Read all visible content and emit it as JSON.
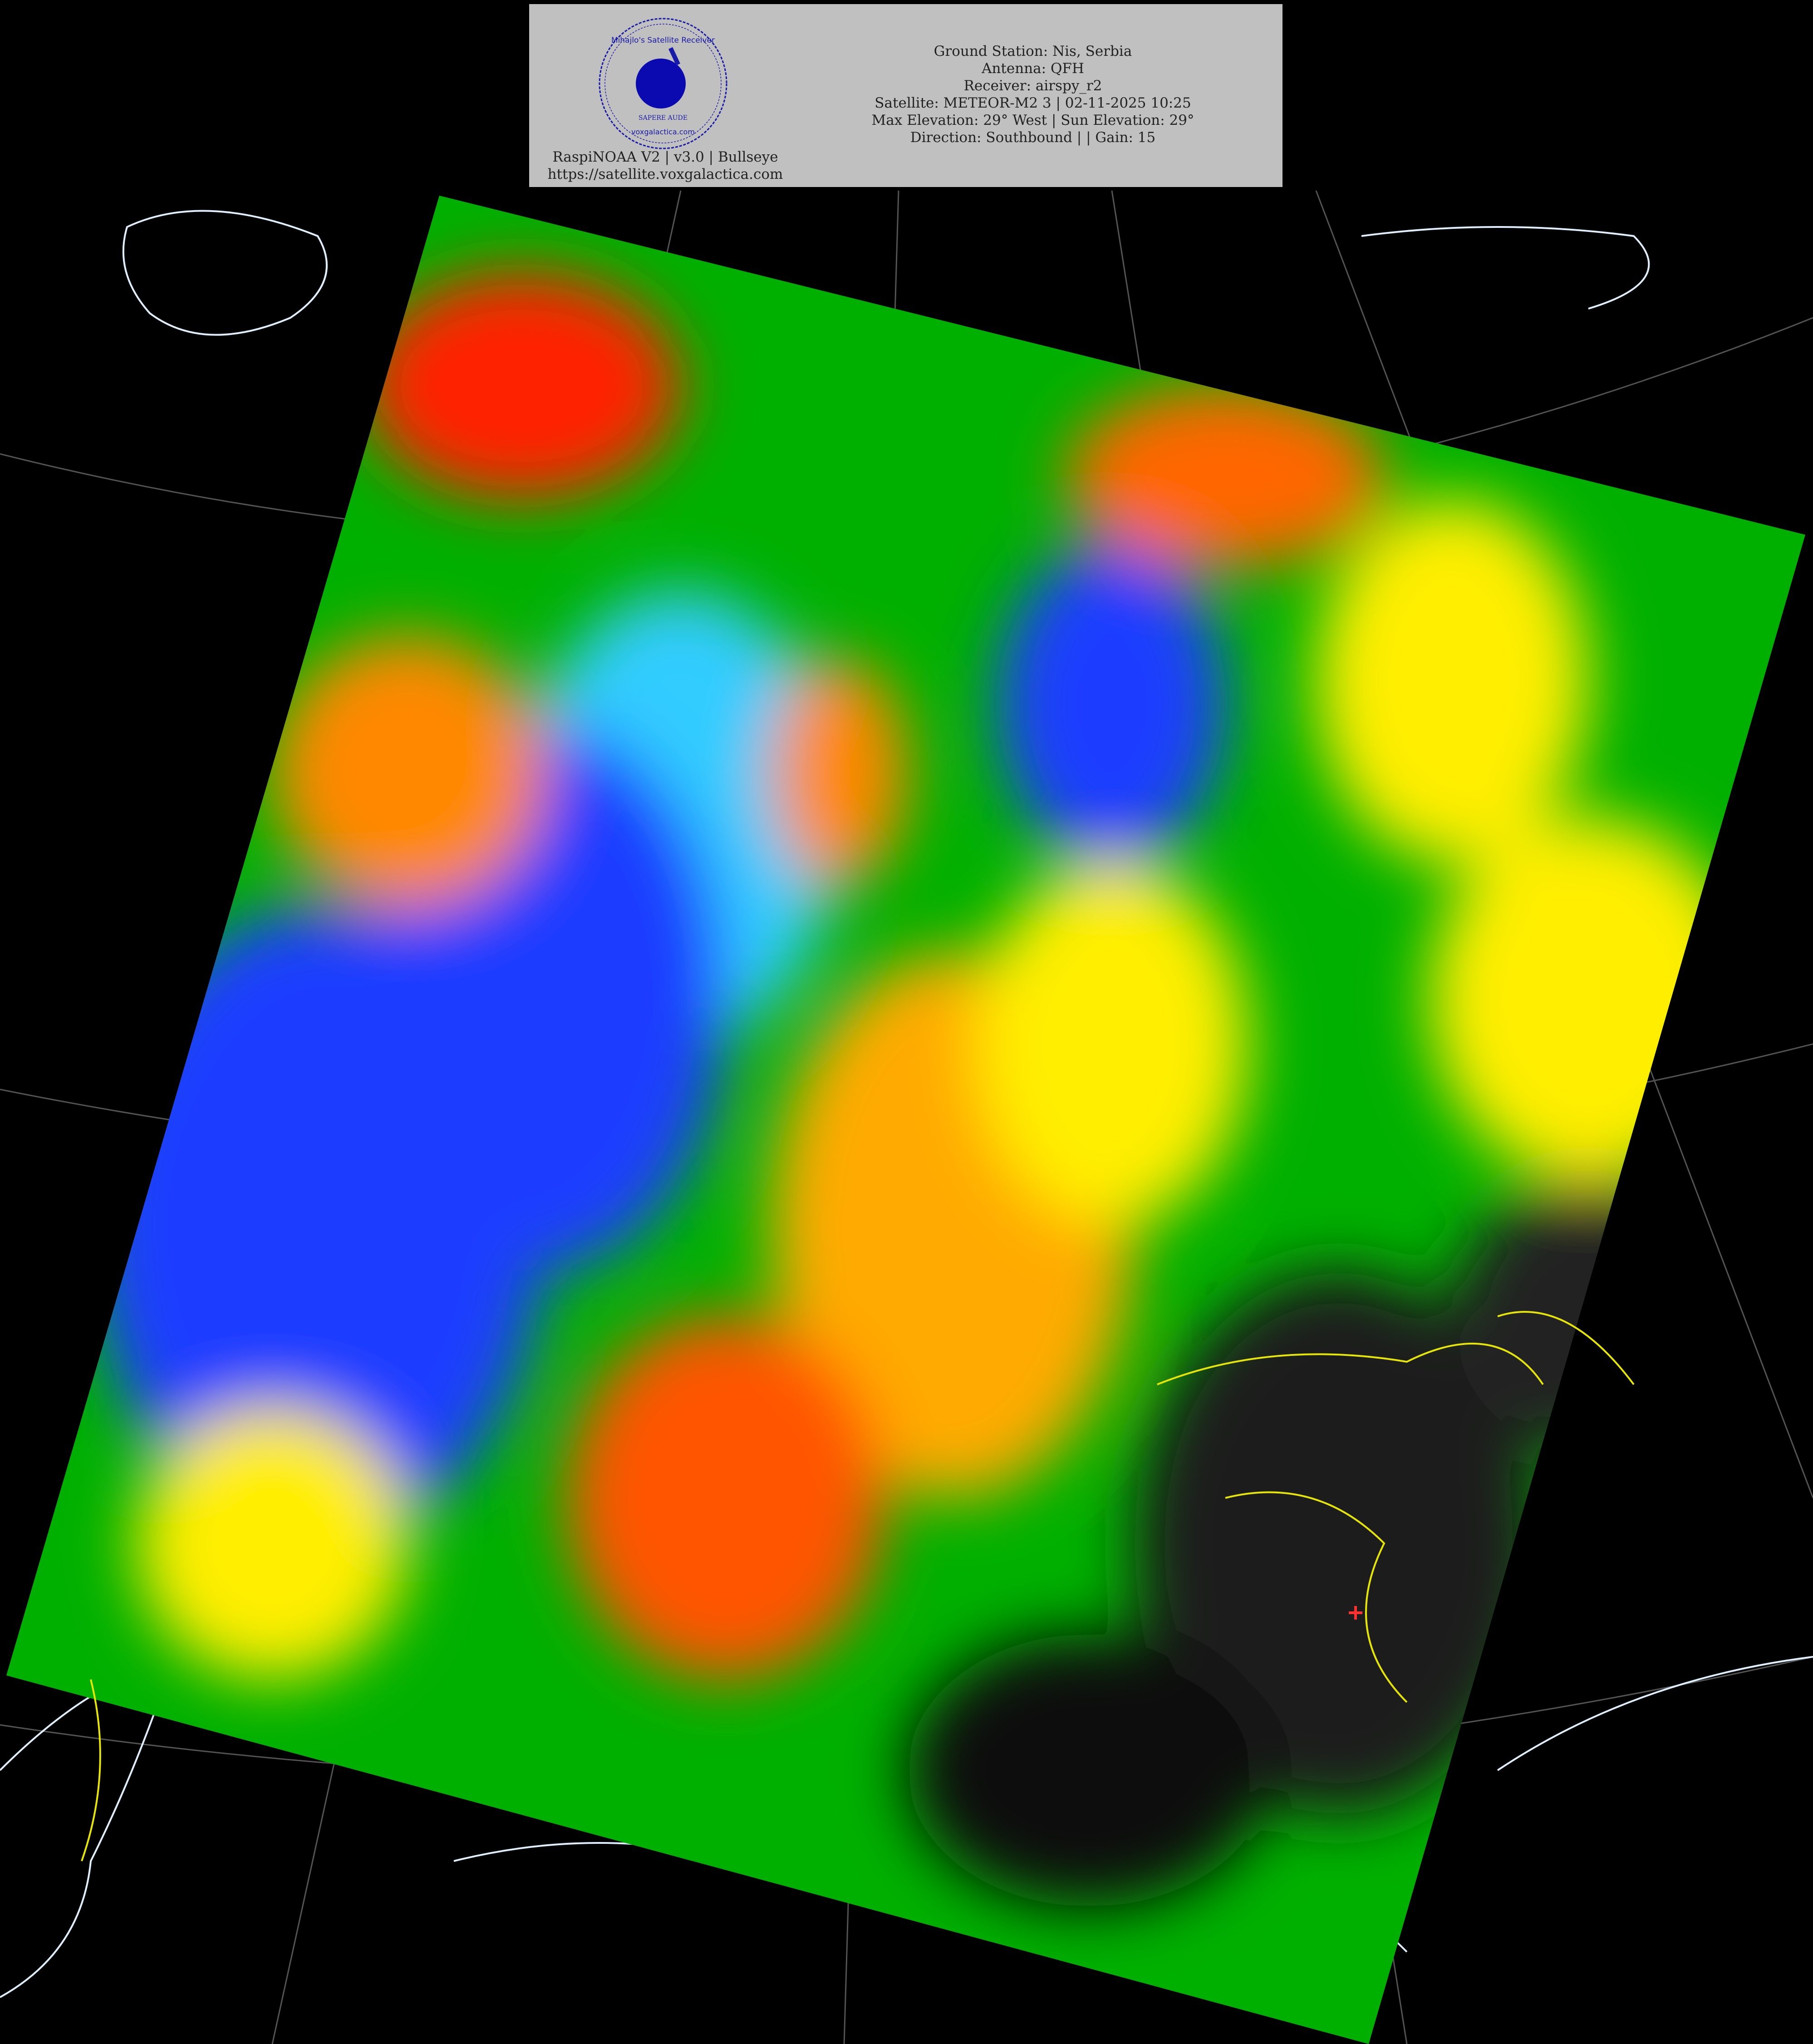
{
  "header": {
    "logo": {
      "ring_text_top": "Mihajlo's Satellite Receiver",
      "ring_text_middle": "SAPERE AUDE",
      "ring_text_bottom": "voxgalactica.com",
      "color": "#1a1aa8"
    },
    "software": "RaspiNOAA V2 | v3.0 | Bullseye",
    "website": "https://satellite.voxgalactica.com",
    "info_lines": [
      "Ground Station: Nis, Serbia",
      "Antenna: QFH",
      "Receiver: airspy_r2",
      "Satellite: METEOR-M2 3 | 02-11-2025 10:25",
      "Max Elevation: 29° West | Sun Elevation: 29°",
      "Direction: Southbound | | Gain: 15"
    ]
  },
  "map": {
    "type": "satellite false-color thermal composite over Europe",
    "palette": [
      "#ff2000",
      "#ff9900",
      "#ffee00",
      "#00c000",
      "#1a3cff",
      "#33ccff",
      "#000000"
    ],
    "border_color": "#ffff00",
    "coastline_color": "#e0f0ff",
    "graticule_color": "#888888",
    "station_marker": {
      "icon": "red-cross-icon",
      "color": "#ff3030"
    }
  }
}
